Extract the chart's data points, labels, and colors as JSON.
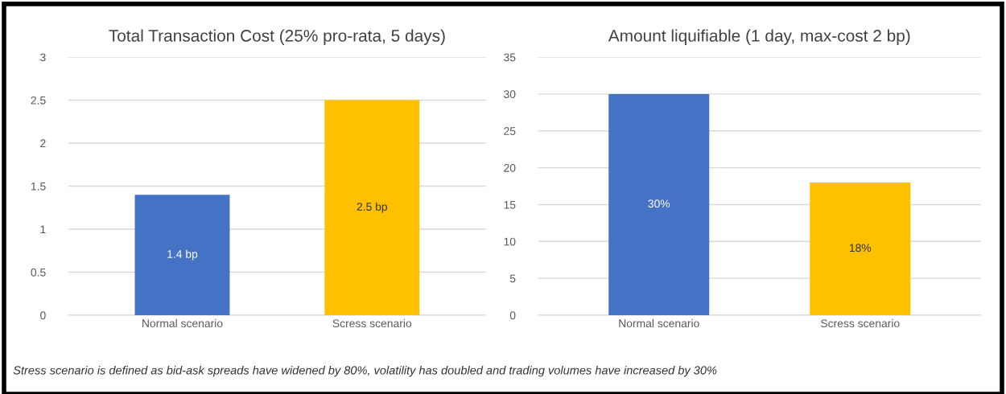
{
  "chart_data": [
    {
      "type": "bar",
      "title": "Total Transaction Cost (25% pro-rata, 5 days)",
      "categories": [
        "Normal scenario",
        "Scress scenario"
      ],
      "values": [
        1.4,
        2.5
      ],
      "colors": [
        "#4472c4",
        "#ffc000"
      ],
      "value_labels": [
        "1.4 bp",
        "2.5 bp"
      ],
      "ylim": [
        0,
        3
      ],
      "yticks": [
        0,
        0.5,
        1,
        1.5,
        2,
        2.5,
        3
      ],
      "grid": "y",
      "legend": false,
      "annotations": [
        "Stress scenario is defined as bid-ask spreads have widened by 80%, volatility has doubled and trading volumes have increased by 30%"
      ]
    },
    {
      "type": "bar",
      "title": "Amount liquifiable (1 day, max-cost 2 bp)",
      "categories": [
        "Normal scenario",
        "Scress scenario"
      ],
      "values": [
        30,
        18
      ],
      "colors": [
        "#4472c4",
        "#ffc000"
      ],
      "value_labels": [
        "30%",
        "18%"
      ],
      "ylim": [
        0,
        35
      ],
      "yticks": [
        0,
        5,
        10,
        15,
        20,
        25,
        30,
        35
      ],
      "grid": "y",
      "legend": false
    }
  ]
}
